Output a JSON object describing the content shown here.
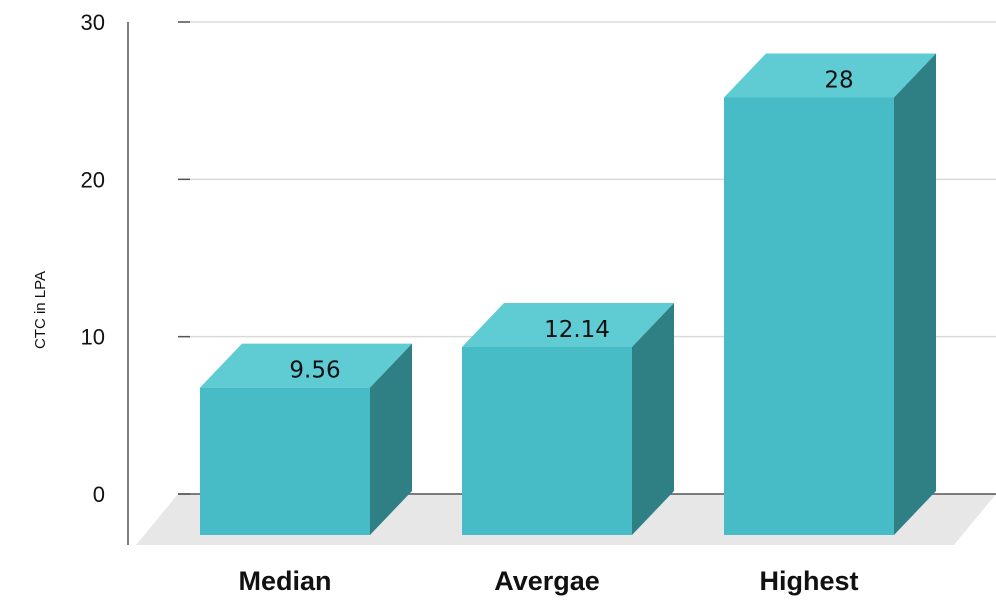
{
  "colors": {
    "front": "#47BCC6",
    "top": "#5FCBD3",
    "side": "#2F8085",
    "floor": "#E7E7E7",
    "grid": "#DADADA",
    "axis": "#555555"
  },
  "chart_data": {
    "type": "bar",
    "categories": [
      "Median",
      "Avergae",
      "Highest"
    ],
    "values": [
      9.56,
      12.14,
      28
    ],
    "value_labels": [
      "9.56",
      "12.14",
      "28"
    ],
    "ylabel": "CTC in LPA",
    "yticks": [
      "0",
      "10",
      "20",
      "30"
    ],
    "ylim": [
      0,
      30
    ],
    "grid": true,
    "style": "3d-bar"
  }
}
